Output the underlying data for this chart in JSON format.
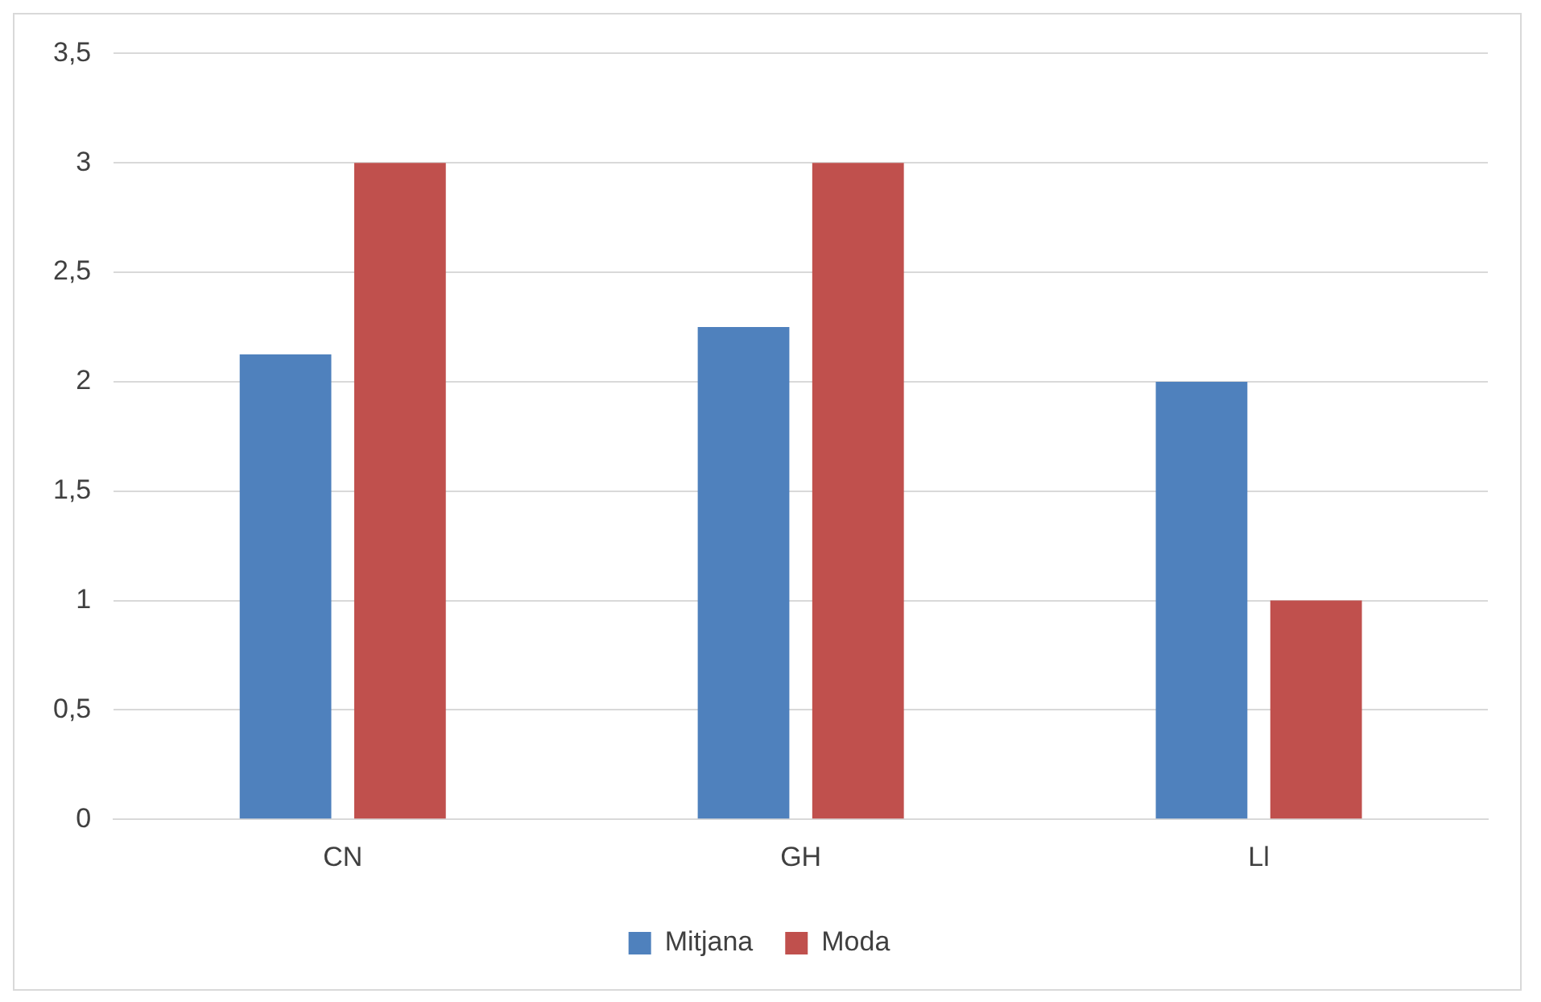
{
  "chart_data": {
    "type": "bar",
    "categories": [
      "CN",
      "GH",
      "Ll"
    ],
    "series": [
      {
        "name": "Mitjana",
        "color": "#4f81bd",
        "values": [
          2.125,
          2.25,
          2
        ]
      },
      {
        "name": "Moda",
        "color": "#c0504d",
        "values": [
          3,
          3,
          1
        ]
      }
    ],
    "ylim": [
      0,
      3.5
    ],
    "yticks": [
      0,
      {
        "value": 0.5,
        "label": "0,5"
      },
      1,
      {
        "value": 1.5,
        "label": "1,5"
      },
      2,
      {
        "value": 2.5,
        "label": "2,5"
      },
      3,
      {
        "value": 3.5,
        "label": "3,5"
      }
    ],
    "grid": "y",
    "legend": "bottom"
  }
}
